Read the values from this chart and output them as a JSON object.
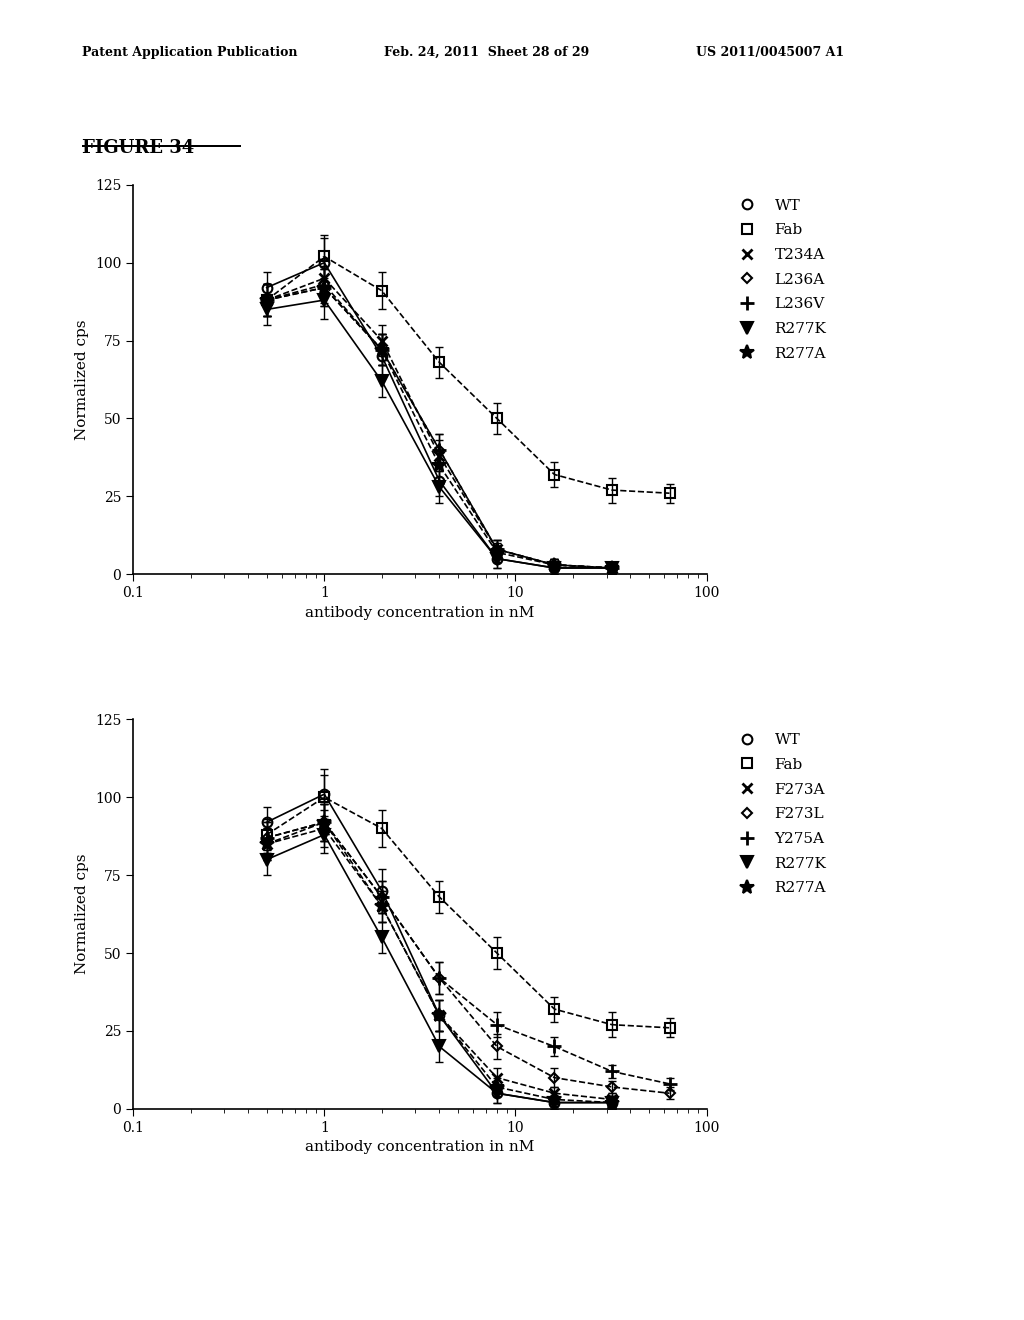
{
  "header_left": "Patent Application Publication",
  "header_center": "Feb. 24, 2011  Sheet 28 of 29",
  "header_right": "US 2011/0045007 A1",
  "figure_label": "FIGURE 34",
  "subplot1": {
    "ylabel": "Normalized cps",
    "xlabel": "antibody concentration in nM",
    "ylim": [
      0,
      125
    ],
    "yticks": [
      0,
      25,
      50,
      75,
      100,
      125
    ],
    "series": [
      {
        "label": "WT",
        "marker": "o",
        "linestyle": "-",
        "fillstyle": "none",
        "x": [
          0.5,
          1.0,
          2.0,
          4.0,
          8.0,
          16.0,
          32.0
        ],
        "y": [
          92,
          100,
          70,
          30,
          5,
          2,
          2
        ],
        "yerr": [
          5,
          8,
          7,
          5,
          3,
          2,
          2
        ]
      },
      {
        "label": "Fab",
        "marker": "s",
        "linestyle": "--",
        "fillstyle": "none",
        "x": [
          0.5,
          1.0,
          2.0,
          4.0,
          8.0,
          16.0,
          32.0,
          64.0
        ],
        "y": [
          88,
          102,
          91,
          68,
          50,
          32,
          27,
          26
        ],
        "yerr": [
          5,
          7,
          6,
          5,
          5,
          4,
          4,
          3
        ]
      },
      {
        "label": "T234A",
        "marker": "x",
        "linestyle": "--",
        "fillstyle": "full",
        "x": [
          0.5,
          1.0,
          2.0,
          4.0,
          8.0,
          16.0,
          32.0
        ],
        "y": [
          88,
          95,
          75,
          38,
          8,
          3,
          2
        ],
        "yerr": [
          5,
          6,
          5,
          5,
          3,
          2,
          2
        ]
      },
      {
        "label": "L236A",
        "marker": "D",
        "linestyle": "--",
        "fillstyle": "none",
        "x": [
          0.5,
          1.0,
          2.0,
          4.0,
          8.0,
          16.0,
          32.0
        ],
        "y": [
          88,
          93,
          72,
          40,
          8,
          3,
          2
        ],
        "yerr": [
          5,
          6,
          5,
          5,
          3,
          2,
          2
        ]
      },
      {
        "label": "L236V",
        "marker": "+",
        "linestyle": "--",
        "fillstyle": "full",
        "x": [
          0.5,
          1.0,
          2.0,
          4.0,
          8.0,
          16.0,
          32.0
        ],
        "y": [
          88,
          92,
          72,
          40,
          8,
          3,
          2
        ],
        "yerr": [
          5,
          6,
          5,
          5,
          3,
          2,
          2
        ]
      },
      {
        "label": "R277K",
        "marker": "v",
        "linestyle": "-",
        "fillstyle": "full",
        "x": [
          0.5,
          1.0,
          2.0,
          4.0,
          8.0,
          16.0,
          32.0
        ],
        "y": [
          85,
          88,
          62,
          28,
          5,
          2,
          2
        ],
        "yerr": [
          5,
          6,
          5,
          5,
          3,
          2,
          2
        ]
      },
      {
        "label": "R277A",
        "marker": "*",
        "linestyle": "--",
        "fillstyle": "full",
        "x": [
          0.5,
          1.0,
          2.0,
          4.0,
          8.0,
          16.0,
          32.0
        ],
        "y": [
          88,
          92,
          72,
          35,
          7,
          3,
          2
        ],
        "yerr": [
          5,
          6,
          5,
          5,
          3,
          2,
          2
        ]
      }
    ]
  },
  "subplot2": {
    "ylabel": "Normalized cps",
    "xlabel": "antibody concentration in nM",
    "ylim": [
      0,
      125
    ],
    "yticks": [
      0,
      25,
      50,
      75,
      100,
      125
    ],
    "series": [
      {
        "label": "WT",
        "marker": "o",
        "linestyle": "-",
        "fillstyle": "none",
        "x": [
          0.5,
          1.0,
          2.0,
          4.0,
          8.0,
          16.0,
          32.0
        ],
        "y": [
          92,
          101,
          70,
          30,
          5,
          2,
          2
        ],
        "yerr": [
          5,
          8,
          7,
          5,
          3,
          2,
          2
        ]
      },
      {
        "label": "Fab",
        "marker": "s",
        "linestyle": "--",
        "fillstyle": "none",
        "x": [
          0.5,
          1.0,
          2.0,
          4.0,
          8.0,
          16.0,
          32.0,
          64.0
        ],
        "y": [
          88,
          100,
          90,
          68,
          50,
          32,
          27,
          26
        ],
        "yerr": [
          5,
          7,
          6,
          5,
          5,
          4,
          4,
          3
        ]
      },
      {
        "label": "F273A",
        "marker": "x",
        "linestyle": "--",
        "fillstyle": "full",
        "x": [
          0.5,
          1.0,
          2.0,
          4.0,
          8.0,
          16.0,
          32.0
        ],
        "y": [
          85,
          90,
          65,
          30,
          10,
          5,
          3
        ],
        "yerr": [
          5,
          6,
          5,
          5,
          3,
          2,
          2
        ]
      },
      {
        "label": "F273L",
        "marker": "D",
        "linestyle": "--",
        "fillstyle": "none",
        "x": [
          0.5,
          1.0,
          2.0,
          4.0,
          8.0,
          16.0,
          32.0,
          64.0
        ],
        "y": [
          87,
          92,
          68,
          42,
          20,
          10,
          7,
          5
        ],
        "yerr": [
          5,
          6,
          5,
          5,
          4,
          3,
          2,
          2
        ]
      },
      {
        "label": "Y275A",
        "marker": "+",
        "linestyle": "--",
        "fillstyle": "full",
        "x": [
          0.5,
          1.0,
          2.0,
          4.0,
          8.0,
          16.0,
          32.0,
          64.0
        ],
        "y": [
          87,
          92,
          68,
          42,
          27,
          20,
          12,
          8
        ],
        "yerr": [
          5,
          6,
          5,
          5,
          4,
          3,
          2,
          2
        ]
      },
      {
        "label": "R277K",
        "marker": "v",
        "linestyle": "-",
        "fillstyle": "full",
        "x": [
          0.5,
          1.0,
          2.0,
          4.0,
          8.0,
          16.0,
          32.0
        ],
        "y": [
          80,
          88,
          55,
          20,
          5,
          2,
          2
        ],
        "yerr": [
          5,
          6,
          5,
          5,
          3,
          2,
          2
        ]
      },
      {
        "label": "R277A",
        "marker": "*",
        "linestyle": "--",
        "fillstyle": "full",
        "x": [
          0.5,
          1.0,
          2.0,
          4.0,
          8.0,
          16.0,
          32.0
        ],
        "y": [
          85,
          92,
          65,
          30,
          7,
          3,
          2
        ],
        "yerr": [
          5,
          6,
          5,
          5,
          3,
          2,
          2
        ]
      }
    ]
  }
}
